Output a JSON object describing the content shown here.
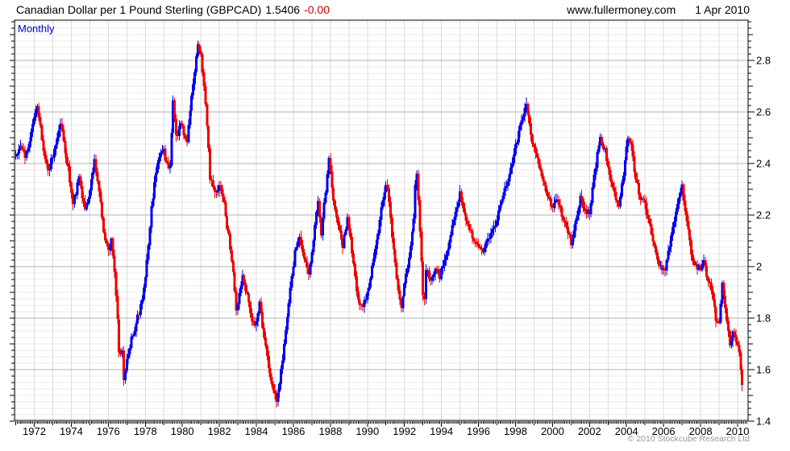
{
  "header": {
    "title": "Canadian Dollar per 1 Pound Sterling (GBPCAD)",
    "last_price": "1.5406",
    "change": "-0.00",
    "website": "www.fullermoney.com",
    "date": "1 Apr 2010"
  },
  "chart": {
    "timeframe_label": "Monthly",
    "copyright": "© 2010 Stockcube Research Ltd"
  },
  "chart_data": {
    "type": "candlestick",
    "period": "monthly",
    "instrument": "GBPCAD",
    "title": "Canadian Dollar per 1 Pound Sterling (GBPCAD)",
    "last_close": 1.5406,
    "colors": {
      "up": "#0000ee",
      "down": "#ee0000",
      "grid_major": "#b2b2b2",
      "grid_minor": "#ebebeb",
      "grid_vertical": "#dcdcdc",
      "axis": "#000000"
    },
    "x_axis": {
      "range_years": [
        1970.93,
        2010.57
      ],
      "tick_labels": [
        "1972",
        "1974",
        "1976",
        "1978",
        "1980",
        "1982",
        "1984",
        "1986",
        "1988",
        "1990",
        "1992",
        "1994",
        "1996",
        "1998",
        "2000",
        "2002",
        "2004",
        "2006",
        "2008",
        "2010"
      ],
      "tick_years": [
        1972,
        1974,
        1976,
        1978,
        1980,
        1982,
        1984,
        1986,
        1988,
        1990,
        1992,
        1994,
        1996,
        1998,
        2000,
        2002,
        2004,
        2006,
        2008,
        2010
      ],
      "minor_tick_interval_years": 0.0833
    },
    "y_axis": {
      "range": [
        1.4,
        2.956
      ],
      "major_step": 0.2,
      "minor_step": 0.025,
      "tick_labels": [
        "2.8",
        "2.6",
        "2.4",
        "2.2",
        "2",
        "1.8",
        "1.6",
        "1.4"
      ],
      "tick_values": [
        2.8,
        2.6,
        2.4,
        2.2,
        2.0,
        1.8,
        1.6,
        1.4
      ],
      "side": "right"
    },
    "series_anchors": [
      [
        1971.0,
        2.44
      ],
      [
        1971.25,
        2.47
      ],
      [
        1971.5,
        2.43
      ],
      [
        1971.75,
        2.49
      ],
      [
        1972.0,
        2.57
      ],
      [
        1972.17,
        2.63
      ],
      [
        1972.33,
        2.54
      ],
      [
        1972.58,
        2.41
      ],
      [
        1972.75,
        2.37
      ],
      [
        1973.0,
        2.43
      ],
      [
        1973.25,
        2.5
      ],
      [
        1973.42,
        2.56
      ],
      [
        1973.58,
        2.48
      ],
      [
        1973.83,
        2.38
      ],
      [
        1974.08,
        2.24
      ],
      [
        1974.25,
        2.29
      ],
      [
        1974.42,
        2.34
      ],
      [
        1974.58,
        2.28
      ],
      [
        1974.75,
        2.23
      ],
      [
        1974.92,
        2.25
      ],
      [
        1975.08,
        2.33
      ],
      [
        1975.25,
        2.41
      ],
      [
        1975.42,
        2.33
      ],
      [
        1975.58,
        2.24
      ],
      [
        1975.83,
        2.1
      ],
      [
        1976.04,
        2.05
      ],
      [
        1976.17,
        2.11
      ],
      [
        1976.33,
        1.97
      ],
      [
        1976.46,
        1.86
      ],
      [
        1976.58,
        1.66
      ],
      [
        1976.63,
        1.59
      ],
      [
        1976.71,
        1.72
      ],
      [
        1976.83,
        1.56
      ],
      [
        1977.08,
        1.67
      ],
      [
        1977.33,
        1.74
      ],
      [
        1977.58,
        1.8
      ],
      [
        1977.83,
        1.87
      ],
      [
        1978.0,
        1.95
      ],
      [
        1978.17,
        2.08
      ],
      [
        1978.33,
        2.22
      ],
      [
        1978.5,
        2.33
      ],
      [
        1978.75,
        2.42
      ],
      [
        1979.0,
        2.45
      ],
      [
        1979.17,
        2.39
      ],
      [
        1979.33,
        2.38
      ],
      [
        1979.5,
        2.65
      ],
      [
        1979.67,
        2.5
      ],
      [
        1979.92,
        2.55
      ],
      [
        1980.08,
        2.52
      ],
      [
        1980.25,
        2.48
      ],
      [
        1980.42,
        2.62
      ],
      [
        1980.58,
        2.7
      ],
      [
        1980.83,
        2.86
      ],
      [
        1981.0,
        2.82
      ],
      [
        1981.17,
        2.7
      ],
      [
        1981.33,
        2.55
      ],
      [
        1981.5,
        2.35
      ],
      [
        1981.75,
        2.28
      ],
      [
        1982.0,
        2.32
      ],
      [
        1982.25,
        2.24
      ],
      [
        1982.5,
        2.12
      ],
      [
        1982.75,
        1.98
      ],
      [
        1982.92,
        1.83
      ],
      [
        1983.08,
        1.9
      ],
      [
        1983.25,
        1.97
      ],
      [
        1983.5,
        1.89
      ],
      [
        1983.75,
        1.8
      ],
      [
        1983.92,
        1.77
      ],
      [
        1984.17,
        1.86
      ],
      [
        1984.42,
        1.72
      ],
      [
        1984.67,
        1.61
      ],
      [
        1984.92,
        1.52
      ],
      [
        1985.08,
        1.47
      ],
      [
        1985.33,
        1.6
      ],
      [
        1985.58,
        1.74
      ],
      [
        1985.83,
        1.93
      ],
      [
        1986.08,
        2.05
      ],
      [
        1986.33,
        2.12
      ],
      [
        1986.58,
        2.04
      ],
      [
        1986.83,
        1.97
      ],
      [
        1987.08,
        2.1
      ],
      [
        1987.33,
        2.26
      ],
      [
        1987.5,
        2.13
      ],
      [
        1987.75,
        2.3
      ],
      [
        1987.92,
        2.42
      ],
      [
        1988.17,
        2.26
      ],
      [
        1988.42,
        2.15
      ],
      [
        1988.67,
        2.08
      ],
      [
        1988.92,
        2.19
      ],
      [
        1989.17,
        2.06
      ],
      [
        1989.42,
        1.9
      ],
      [
        1989.7,
        1.84
      ],
      [
        1990.0,
        1.9
      ],
      [
        1990.33,
        2.02
      ],
      [
        1990.67,
        2.18
      ],
      [
        1990.92,
        2.3
      ],
      [
        1991.08,
        2.31
      ],
      [
        1991.33,
        2.12
      ],
      [
        1991.58,
        1.95
      ],
      [
        1991.83,
        1.85
      ],
      [
        1992.08,
        1.96
      ],
      [
        1992.33,
        2.07
      ],
      [
        1992.5,
        2.18
      ],
      [
        1992.63,
        2.4
      ],
      [
        1992.79,
        2.2
      ],
      [
        1992.96,
        1.95
      ],
      [
        1993.04,
        1.82
      ],
      [
        1993.17,
        1.99
      ],
      [
        1993.42,
        1.94
      ],
      [
        1993.67,
        1.99
      ],
      [
        1993.92,
        1.96
      ],
      [
        1994.17,
        2.03
      ],
      [
        1994.5,
        2.12
      ],
      [
        1994.75,
        2.22
      ],
      [
        1995.0,
        2.28
      ],
      [
        1995.33,
        2.18
      ],
      [
        1995.67,
        2.11
      ],
      [
        1996.0,
        2.08
      ],
      [
        1996.25,
        2.06
      ],
      [
        1996.58,
        2.11
      ],
      [
        1996.92,
        2.17
      ],
      [
        1997.25,
        2.25
      ],
      [
        1997.58,
        2.34
      ],
      [
        1997.92,
        2.44
      ],
      [
        1998.17,
        2.52
      ],
      [
        1998.42,
        2.58
      ],
      [
        1998.58,
        2.64
      ],
      [
        1998.83,
        2.5
      ],
      [
        1999.08,
        2.44
      ],
      [
        1999.33,
        2.37
      ],
      [
        1999.67,
        2.28
      ],
      [
        2000.0,
        2.22
      ],
      [
        2000.25,
        2.27
      ],
      [
        2000.5,
        2.2
      ],
      [
        2000.75,
        2.15
      ],
      [
        2001.0,
        2.09
      ],
      [
        2001.25,
        2.17
      ],
      [
        2001.5,
        2.27
      ],
      [
        2001.75,
        2.22
      ],
      [
        2002.0,
        2.21
      ],
      [
        2002.25,
        2.36
      ],
      [
        2002.58,
        2.5
      ],
      [
        2002.83,
        2.45
      ],
      [
        2003.08,
        2.35
      ],
      [
        2003.33,
        2.28
      ],
      [
        2003.58,
        2.23
      ],
      [
        2003.83,
        2.36
      ],
      [
        2004.08,
        2.5
      ],
      [
        2004.25,
        2.46
      ],
      [
        2004.5,
        2.34
      ],
      [
        2004.75,
        2.26
      ],
      [
        2005.0,
        2.24
      ],
      [
        2005.25,
        2.16
      ],
      [
        2005.58,
        2.05
      ],
      [
        2005.83,
        2.0
      ],
      [
        2006.08,
        1.99
      ],
      [
        2006.33,
        2.08
      ],
      [
        2006.58,
        2.18
      ],
      [
        2006.83,
        2.26
      ],
      [
        2007.0,
        2.31
      ],
      [
        2007.25,
        2.18
      ],
      [
        2007.5,
        2.05
      ],
      [
        2007.75,
        2.0
      ],
      [
        2008.0,
        1.99
      ],
      [
        2008.17,
        2.03
      ],
      [
        2008.33,
        1.97
      ],
      [
        2008.58,
        1.92
      ],
      [
        2008.83,
        1.8
      ],
      [
        2009.0,
        1.77
      ],
      [
        2009.17,
        1.93
      ],
      [
        2009.42,
        1.8
      ],
      [
        2009.58,
        1.68
      ],
      [
        2009.75,
        1.76
      ],
      [
        2009.92,
        1.7
      ],
      [
        2010.08,
        1.67
      ],
      [
        2010.17,
        1.6
      ],
      [
        2010.25,
        1.5406
      ]
    ]
  }
}
